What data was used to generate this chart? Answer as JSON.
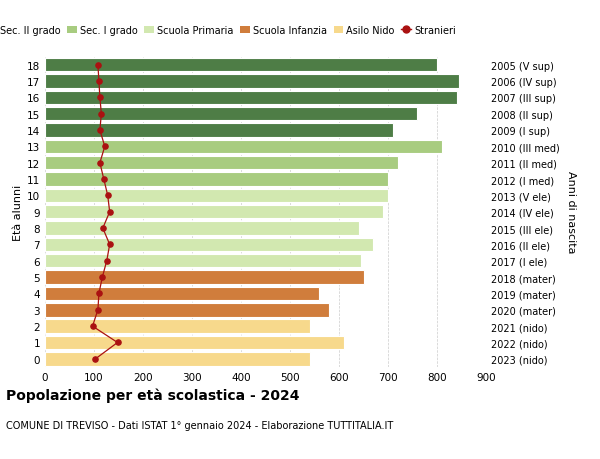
{
  "ages": [
    0,
    1,
    2,
    3,
    4,
    5,
    6,
    7,
    8,
    9,
    10,
    11,
    12,
    13,
    14,
    15,
    16,
    17,
    18
  ],
  "bar_values": [
    540,
    610,
    540,
    580,
    560,
    650,
    645,
    670,
    640,
    690,
    700,
    700,
    720,
    810,
    710,
    760,
    840,
    845,
    800
  ],
  "bar_colors": [
    "#f7d98c",
    "#f7d98c",
    "#f7d98c",
    "#d07d3c",
    "#d07d3c",
    "#d07d3c",
    "#d2e8b0",
    "#d2e8b0",
    "#d2e8b0",
    "#d2e8b0",
    "#d2e8b0",
    "#a8cc80",
    "#a8cc80",
    "#a8cc80",
    "#4e7d46",
    "#4e7d46",
    "#4e7d46",
    "#4e7d46",
    "#4e7d46"
  ],
  "stranieri_values": [
    103,
    148,
    97,
    108,
    110,
    117,
    126,
    132,
    118,
    132,
    128,
    120,
    112,
    122,
    112,
    115,
    112,
    110,
    108
  ],
  "right_labels": [
    "2023 (nido)",
    "2022 (nido)",
    "2021 (nido)",
    "2020 (mater)",
    "2019 (mater)",
    "2018 (mater)",
    "2017 (I ele)",
    "2016 (II ele)",
    "2015 (III ele)",
    "2014 (IV ele)",
    "2013 (V ele)",
    "2012 (I med)",
    "2011 (II med)",
    "2010 (III med)",
    "2009 (I sup)",
    "2008 (II sup)",
    "2007 (III sup)",
    "2006 (IV sup)",
    "2005 (V sup)"
  ],
  "legend_labels": [
    "Sec. II grado",
    "Sec. I grado",
    "Scuola Primaria",
    "Scuola Infanzia",
    "Asilo Nido",
    "Stranieri"
  ],
  "legend_colors": [
    "#4e7d46",
    "#a8cc80",
    "#d2e8b0",
    "#d07d3c",
    "#f7d98c",
    "#aa1111"
  ],
  "title": "Popolazione per età scolastica - 2024",
  "subtitle": "COMUNE DI TREVISO - Dati ISTAT 1° gennaio 2024 - Elaborazione TUTTITALIA.IT",
  "ylabel_left": "Età alunni",
  "ylabel_right": "Anni di nascita",
  "xlim": [
    0,
    900
  ],
  "xticks": [
    0,
    100,
    200,
    300,
    400,
    500,
    600,
    700,
    800,
    900
  ],
  "bg_color": "#ffffff",
  "grid_color": "#cccccc"
}
